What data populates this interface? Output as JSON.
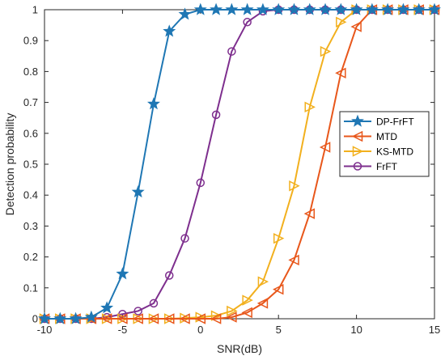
{
  "chart_data": {
    "type": "line",
    "title": "",
    "xlabel": "SNR(dB)",
    "ylabel": "Detection probability",
    "xlim": [
      -10,
      15
    ],
    "ylim": [
      0,
      1
    ],
    "xticks": [
      -10,
      -5,
      0,
      5,
      10,
      15
    ],
    "yticks": [
      0,
      0.1,
      0.2,
      0.3,
      0.4,
      0.5,
      0.6,
      0.7,
      0.8,
      0.9,
      1
    ],
    "xtick_labels": [
      "-10",
      "-5",
      "0",
      "5",
      "10",
      "15"
    ],
    "ytick_labels": [
      "0",
      "0.1",
      "0.2",
      "0.3",
      "0.4",
      "0.5",
      "0.6",
      "0.7",
      "0.8",
      "0.9",
      "1"
    ],
    "grid": false,
    "legend_position": "right",
    "x": [
      -10,
      -9,
      -8,
      -7,
      -6,
      -5,
      -4,
      -3,
      -2,
      -1,
      0,
      1,
      2,
      3,
      4,
      5,
      6,
      7,
      8,
      9,
      10,
      11,
      12,
      13,
      14,
      15
    ],
    "series": [
      {
        "name": "DP-FrFT",
        "color": "#1f77b4",
        "marker": "star",
        "values": [
          0,
          0,
          0,
          0.005,
          0.035,
          0.145,
          0.41,
          0.695,
          0.93,
          0.985,
          1,
          1,
          1,
          1,
          1,
          1,
          1,
          1,
          1,
          1,
          1,
          1,
          1,
          1,
          1,
          1
        ]
      },
      {
        "name": "MTD",
        "color": "#e8571b",
        "marker": "triangle-left",
        "values": [
          0,
          0,
          0,
          0,
          0,
          0,
          0,
          0,
          0,
          0,
          0,
          0,
          0.005,
          0.02,
          0.05,
          0.095,
          0.19,
          0.34,
          0.555,
          0.795,
          0.945,
          1,
          1,
          1,
          1,
          1
        ]
      },
      {
        "name": "KS-MTD",
        "color": "#f2b01e",
        "marker": "triangle-right",
        "values": [
          0,
          0,
          0,
          0,
          0,
          0,
          0,
          0,
          0,
          0.002,
          0.005,
          0.01,
          0.025,
          0.06,
          0.12,
          0.26,
          0.43,
          0.685,
          0.865,
          0.96,
          1,
          1,
          1,
          1,
          1,
          1
        ]
      },
      {
        "name": "FrFT",
        "color": "#7e2f8e",
        "marker": "circle",
        "values": [
          0,
          0,
          0,
          0,
          0.005,
          0.015,
          0.025,
          0.05,
          0.14,
          0.26,
          0.44,
          0.66,
          0.865,
          0.96,
          0.995,
          1,
          1,
          1,
          1,
          1,
          1,
          1,
          1,
          1,
          1,
          1
        ]
      }
    ]
  }
}
